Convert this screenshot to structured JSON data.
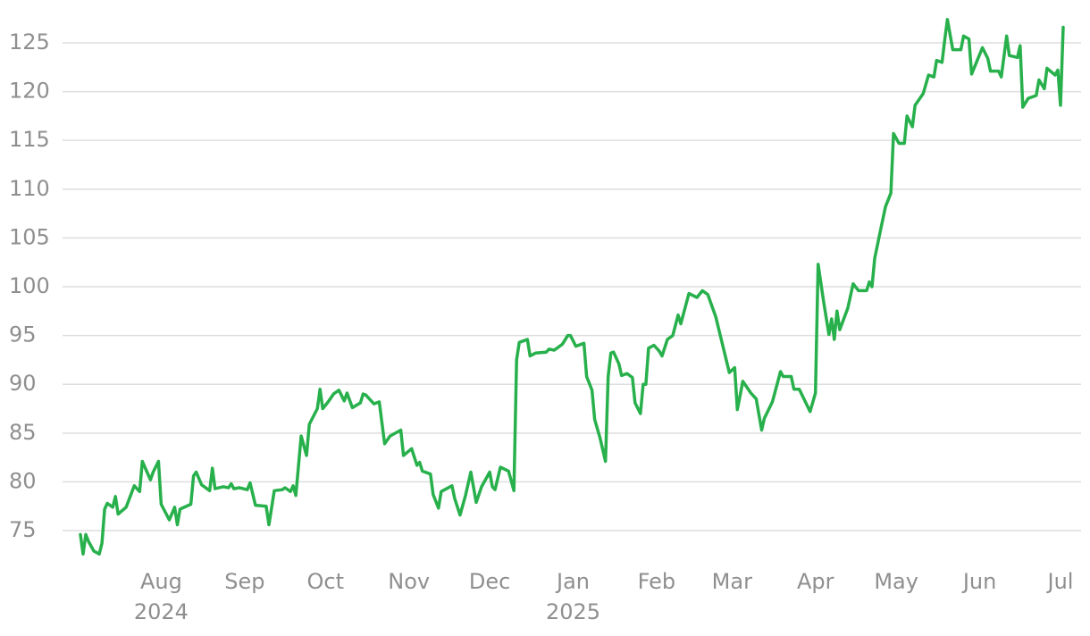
{
  "chart_data": {
    "type": "line",
    "x": [
      0,
      1,
      2,
      3,
      5,
      7,
      8,
      9,
      10,
      12,
      13,
      14,
      17,
      20,
      22,
      23,
      26,
      27,
      29,
      30,
      33,
      35,
      36,
      37,
      41,
      42,
      43,
      45,
      48,
      49,
      50,
      53,
      55,
      56,
      57,
      59,
      62,
      63,
      65,
      69,
      70,
      72,
      75,
      76,
      78,
      79,
      80,
      82,
      84,
      85,
      88,
      89,
      90,
      92,
      94,
      96,
      98,
      99,
      101,
      104,
      105,
      106,
      109,
      111,
      113,
      115,
      119,
      120,
      123,
      125,
      126,
      127,
      130,
      131,
      133,
      134,
      138,
      139,
      141,
      143,
      145,
      147,
      149,
      152,
      153,
      154,
      156,
      159,
      161,
      162,
      163,
      166,
      167,
      169,
      173,
      174,
      176,
      179,
      181,
      182,
      184,
      187,
      188,
      190,
      191,
      193,
      195,
      196,
      197,
      198,
      200,
      201,
      203,
      205,
      206,
      208,
      209,
      210,
      211,
      213,
      215,
      216,
      218,
      220,
      222,
      223,
      226,
      229,
      231,
      233,
      236,
      238,
      241,
      243,
      244,
      246,
      249,
      251,
      253,
      254,
      257,
      260,
      261,
      264,
      265,
      267,
      271,
      273,
      274,
      276,
      278,
      279,
      280,
      281,
      282,
      285,
      287,
      289,
      290,
      292,
      293,
      294,
      295,
      297,
      299,
      301,
      302,
      304,
      306,
      307,
      309,
      310,
      313,
      315,
      317,
      318,
      320,
      321,
      322,
      324,
      327,
      328,
      330,
      331,
      335,
      337,
      338,
      341,
      342,
      344,
      345,
      348,
      349,
      350,
      352,
      355,
      356,
      358,
      359,
      362,
      363,
      364,
      365
    ],
    "series": [
      {
        "color": "#27b04b",
        "values": [
          74.6,
          72.6,
          74.6,
          73.9,
          72.9,
          72.6,
          73.7,
          77.2,
          77.8,
          77.4,
          78.5,
          76.7,
          77.4,
          79.6,
          79.0,
          82.1,
          80.2,
          81.0,
          82.1,
          77.7,
          76.1,
          77.4,
          75.6,
          77.2,
          77.7,
          80.6,
          81.0,
          79.7,
          79.1,
          81.4,
          79.3,
          79.5,
          79.4,
          79.8,
          79.3,
          79.4,
          79.2,
          79.9,
          77.6,
          77.5,
          75.6,
          79.1,
          79.2,
          79.4,
          79.0,
          79.6,
          78.6,
          84.7,
          82.7,
          85.9,
          87.5,
          89.5,
          87.5,
          88.2,
          89.0,
          89.4,
          88.3,
          89.1,
          87.6,
          88.1,
          89.0,
          88.9,
          88.0,
          88.2,
          83.9,
          84.7,
          85.3,
          82.7,
          83.4,
          81.7,
          82.0,
          81.1,
          80.8,
          78.7,
          77.3,
          79.0,
          79.6,
          78.3,
          76.6,
          78.6,
          81.0,
          77.9,
          79.5,
          81.0,
          79.5,
          79.2,
          81.5,
          81.1,
          79.1,
          92.5,
          94.3,
          94.6,
          92.9,
          93.2,
          93.3,
          93.6,
          93.5,
          94.1,
          95.0,
          95.0,
          93.9,
          94.2,
          90.8,
          89.4,
          86.4,
          84.5,
          82.1,
          90.8,
          93.2,
          93.3,
          92.1,
          90.9,
          91.1,
          90.7,
          88.1,
          87.0,
          90.0,
          90.0,
          93.7,
          94.0,
          93.4,
          92.9,
          94.6,
          95.0,
          97.1,
          96.2,
          99.3,
          98.9,
          99.6,
          99.2,
          96.9,
          94.6,
          91.2,
          91.7,
          87.4,
          90.3,
          89.1,
          88.5,
          85.3,
          86.5,
          88.2,
          91.3,
          90.8,
          90.8,
          89.5,
          89.5,
          87.2,
          89.1,
          102.3,
          98.5,
          95.1,
          96.7,
          94.6,
          97.5,
          95.6,
          97.8,
          100.3,
          99.6,
          99.6,
          99.6,
          100.5,
          100.0,
          102.9,
          105.6,
          108.2,
          109.6,
          115.7,
          114.7,
          114.7,
          117.5,
          116.4,
          118.6,
          119.8,
          121.7,
          121.5,
          123.2,
          123.0,
          125.3,
          127.4,
          124.3,
          124.3,
          125.7,
          125.4,
          121.8,
          124.5,
          123.4,
          122.1,
          122.1,
          121.5,
          125.7,
          123.7,
          123.5,
          124.7,
          118.4,
          119.3,
          119.6,
          121.2,
          120.3,
          122.4,
          121.7,
          122.2,
          118.6,
          126.6
        ]
      }
    ],
    "xlim": [
      0,
      366
    ],
    "xticks": [
      {
        "value": 30,
        "label": "Aug"
      },
      {
        "value": 61,
        "label": "Sep"
      },
      {
        "value": 91,
        "label": "Oct"
      },
      {
        "value": 122,
        "label": "Nov"
      },
      {
        "value": 152,
        "label": "Dec"
      },
      {
        "value": 183,
        "label": "Jan"
      },
      {
        "value": 214,
        "label": "Feb"
      },
      {
        "value": 242,
        "label": "Mar"
      },
      {
        "value": 273,
        "label": "Apr"
      },
      {
        "value": 303,
        "label": "May"
      },
      {
        "value": 334,
        "label": "Jun"
      },
      {
        "value": 364,
        "label": "Jul"
      }
    ],
    "x_sublabels": [
      {
        "value": 30,
        "label": "2024"
      },
      {
        "value": 183,
        "label": "2025"
      }
    ],
    "ylim": [
      72,
      128
    ],
    "yticks": [
      75,
      80,
      85,
      90,
      95,
      100,
      105,
      110,
      115,
      120,
      125
    ],
    "grid": true
  }
}
